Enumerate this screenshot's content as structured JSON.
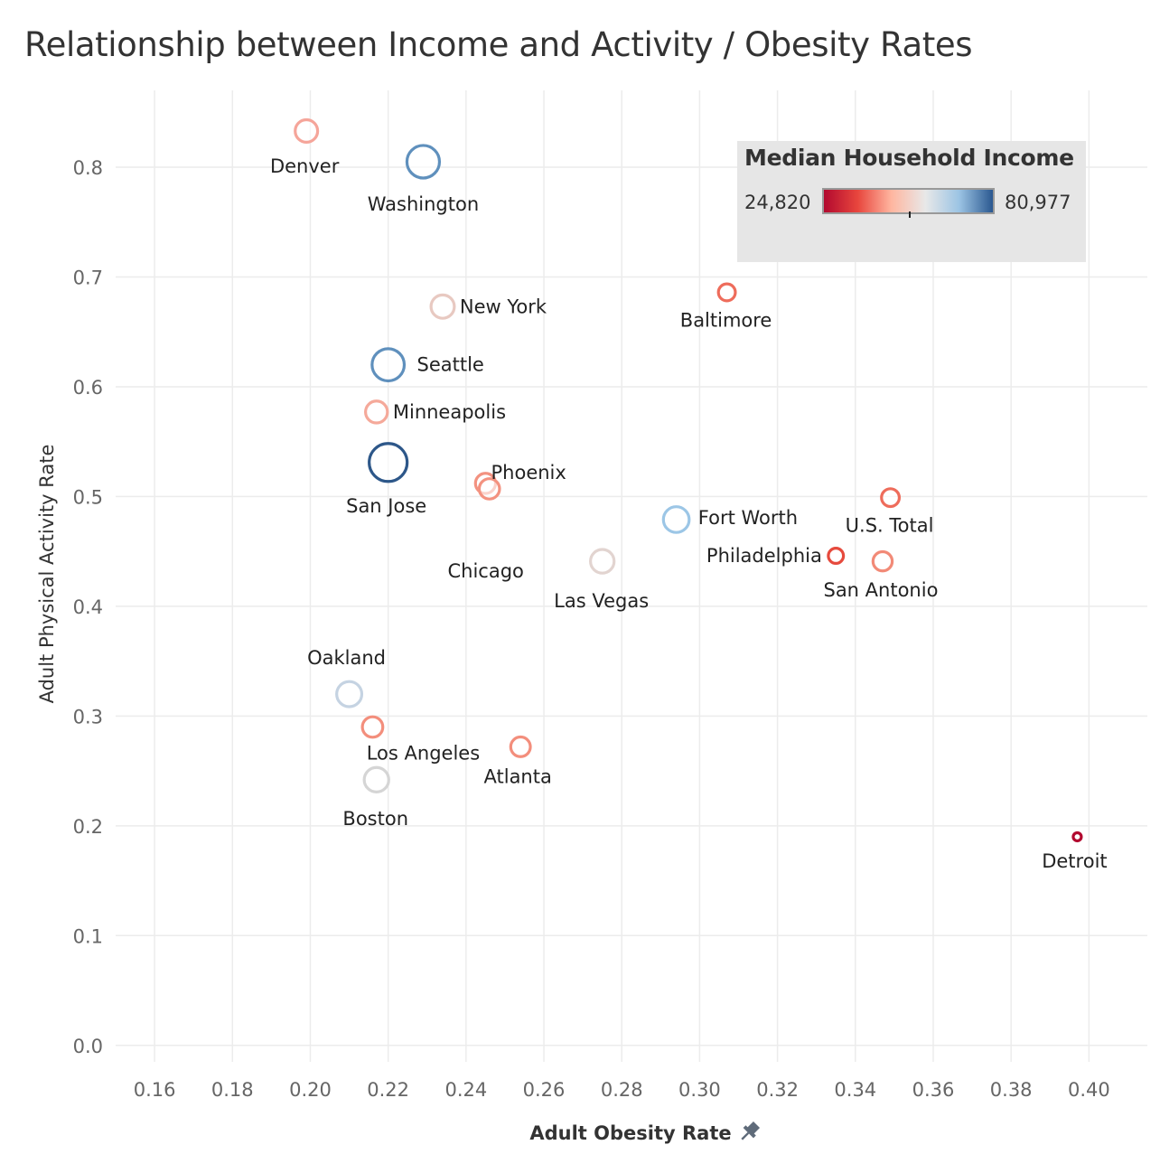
{
  "chart_data": {
    "type": "scatter",
    "title": "Relationship between Income and Activity / Obesity Rates",
    "xlabel": "Adult Obesity Rate",
    "ylabel": "Adult Physical Activity Rate",
    "xlim": [
      0.15,
      0.415
    ],
    "ylim": [
      -0.015,
      0.87
    ],
    "x_ticks": [
      "0.16",
      "0.18",
      "0.20",
      "0.22",
      "0.24",
      "0.26",
      "0.28",
      "0.30",
      "0.32",
      "0.34",
      "0.36",
      "0.38",
      "0.40"
    ],
    "y_ticks": [
      "0.0",
      "0.1",
      "0.2",
      "0.3",
      "0.4",
      "0.5",
      "0.6",
      "0.7",
      "0.8"
    ],
    "grid": true,
    "x_axis_icon": "pin-icon",
    "legend": {
      "title": "Median Household Income",
      "min_label": "24,820",
      "max_label": "80,977",
      "placement": "top-right",
      "colors": [
        "#b2092f",
        "#e8463d",
        "#ffb6a0",
        "#e8e8e8",
        "#9cc4e4",
        "#2a5890"
      ]
    },
    "points": [
      {
        "label": "Denver",
        "x": 0.199,
        "y": 0.833,
        "income": 51800,
        "color": "#f5a59a"
      },
      {
        "label": "Washington",
        "x": 0.229,
        "y": 0.805,
        "income": 70800,
        "color": "#5f90bd"
      },
      {
        "label": "New York",
        "x": 0.234,
        "y": 0.673,
        "income": 53400,
        "color": "#e8c9c1"
      },
      {
        "label": "Baltimore",
        "x": 0.307,
        "y": 0.686,
        "income": 41400,
        "color": "#ee6c5b"
      },
      {
        "label": "Seattle",
        "x": 0.22,
        "y": 0.62,
        "income": 70200,
        "color": "#5f90bd"
      },
      {
        "label": "Minneapolis",
        "x": 0.217,
        "y": 0.577,
        "income": 50800,
        "color": "#f5a99a"
      },
      {
        "label": "San Jose",
        "x": 0.22,
        "y": 0.531,
        "income": 80977,
        "color": "#2d5789"
      },
      {
        "label": "Phoenix",
        "x": 0.245,
        "y": 0.512,
        "income": 47300,
        "color": "#f39280"
      },
      {
        "label": "Chicago",
        "x": 0.246,
        "y": 0.507,
        "income": 47800,
        "color": "#f39280"
      },
      {
        "label": "Fort Worth",
        "x": 0.294,
        "y": 0.479,
        "income": 58000,
        "color": "#9cc6e6"
      },
      {
        "label": "U.S. Total",
        "x": 0.349,
        "y": 0.499,
        "income": 43000,
        "color": "#ee6c5b"
      },
      {
        "label": "Las Vegas",
        "x": 0.275,
        "y": 0.441,
        "income": 54000,
        "color": "#e2d4d0"
      },
      {
        "label": "Philadelphia",
        "x": 0.335,
        "y": 0.446,
        "income": 38000,
        "color": "#e64a3d"
      },
      {
        "label": "San Antonio",
        "x": 0.347,
        "y": 0.441,
        "income": 45700,
        "color": "#f28a77"
      },
      {
        "label": "Oakland",
        "x": 0.21,
        "y": 0.32,
        "income": 56800,
        "color": "#c5d3e2"
      },
      {
        "label": "Los Angeles",
        "x": 0.216,
        "y": 0.29,
        "income": 48000,
        "color": "#f38e7c"
      },
      {
        "label": "Atlanta",
        "x": 0.254,
        "y": 0.272,
        "income": 46500,
        "color": "#f38e7c"
      },
      {
        "label": "Boston",
        "x": 0.217,
        "y": 0.242,
        "income": 55700,
        "color": "#d5d5d5"
      },
      {
        "label": "Detroit",
        "x": 0.397,
        "y": 0.19,
        "income": 24820,
        "color": "#b2092f"
      }
    ]
  }
}
